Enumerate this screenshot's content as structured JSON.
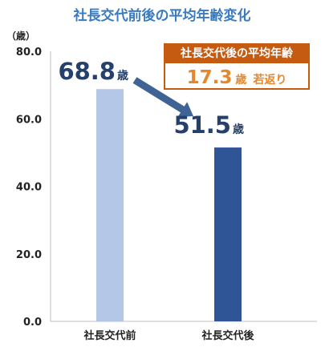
{
  "chart_data": {
    "type": "bar",
    "title": "社長交代前後の平均年齢変化",
    "yunit": "（歳）",
    "ylim": [
      0,
      80
    ],
    "yticks": [
      "0.0",
      "20.0",
      "40.0",
      "60.0",
      "80.0"
    ],
    "tick_values": [
      0,
      20,
      40,
      60,
      80
    ],
    "categories": [
      "社長交代前",
      "社長交代後"
    ],
    "values": [
      68.8,
      51.5
    ],
    "value_labels": [
      "68.8",
      "51.5"
    ],
    "value_unit": "歳",
    "bar_colors": [
      "#b4c7e7",
      "#2f5597"
    ],
    "callout": {
      "title": "社長交代後の平均年齢",
      "value": "17.3",
      "unit": "歳",
      "suffix": "若返り",
      "header_color": "#c55a11",
      "value_color": "#e8872a"
    },
    "arrow_color": "#3f6394",
    "grid": false
  }
}
